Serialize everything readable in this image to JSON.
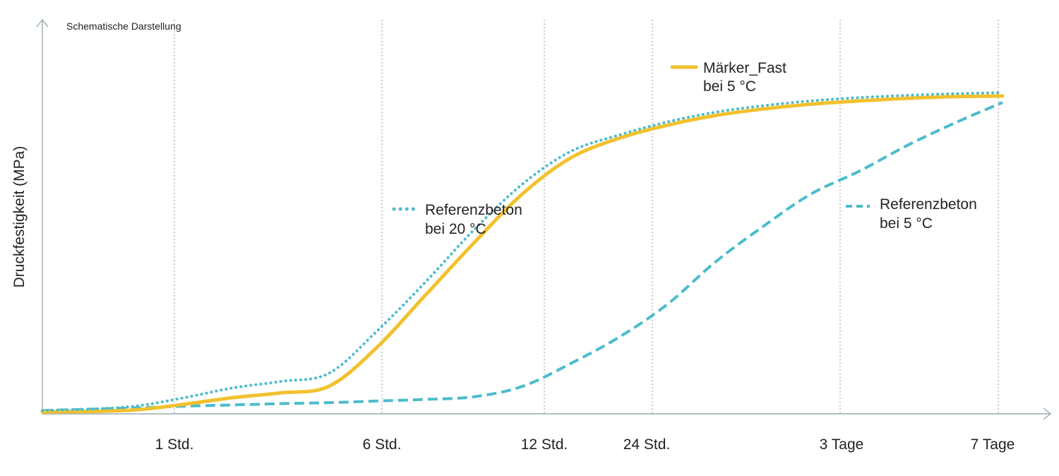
{
  "chart_data": {
    "type": "line",
    "note": "Schematische Darstellung",
    "xlabel": "",
    "ylabel": "Druckfestigkeit (MPa)",
    "x_ticks": [
      "1 Std.",
      "6 Std.",
      "12 Std.",
      "24 Std.",
      "3 Tage",
      "7 Tage"
    ],
    "grid": "vertical dotted",
    "y_ticks": "none (schematic)",
    "series": [
      {
        "name": "Märker_Fast bei 5 °C",
        "legend_lines": [
          "Märker_Fast",
          "bei 5 °C"
        ],
        "style": "solid",
        "color": "#f2c12e",
        "points": [
          [
            0,
            0.2
          ],
          [
            1,
            0.3
          ],
          [
            2,
            0.8
          ],
          [
            3,
            2.5
          ],
          [
            4,
            4.5
          ],
          [
            5,
            6
          ],
          [
            6,
            8
          ],
          [
            7,
            20
          ],
          [
            8,
            36
          ],
          [
            9,
            52
          ],
          [
            10,
            67
          ],
          [
            11,
            78
          ],
          [
            12,
            84
          ],
          [
            13,
            88
          ],
          [
            14,
            91
          ],
          [
            15,
            93
          ],
          [
            16,
            94.5
          ],
          [
            17,
            95.5
          ],
          [
            18,
            96.3
          ],
          [
            19,
            96.8
          ],
          [
            20,
            97
          ]
        ]
      },
      {
        "name": "Referenzbeton bei 20 °C",
        "legend_lines": [
          "Referenzbeton",
          "bei 20 °C"
        ],
        "style": "dotted",
        "color": "#4bbccc",
        "points": [
          [
            0,
            0.6
          ],
          [
            1,
            1
          ],
          [
            2,
            2
          ],
          [
            3,
            4.5
          ],
          [
            4,
            7.5
          ],
          [
            5,
            9.5
          ],
          [
            6,
            12
          ],
          [
            7,
            25
          ],
          [
            8,
            40
          ],
          [
            9,
            56
          ],
          [
            10,
            70
          ],
          [
            11,
            80
          ],
          [
            12,
            85
          ],
          [
            13,
            89
          ],
          [
            14,
            92
          ],
          [
            15,
            94
          ],
          [
            16,
            95.5
          ],
          [
            17,
            96.5
          ],
          [
            18,
            97.2
          ],
          [
            19,
            97.7
          ],
          [
            20,
            98
          ]
        ]
      },
      {
        "name": "Referenzbeton bei 5 °C",
        "legend_lines": [
          "Referenzbeton",
          "bei 5 °C"
        ],
        "style": "dashed",
        "color": "#4bbccc",
        "points": [
          [
            0,
            0.6
          ],
          [
            1,
            1
          ],
          [
            2,
            1.4
          ],
          [
            3,
            1.9
          ],
          [
            4,
            2.3
          ],
          [
            5,
            2.7
          ],
          [
            6,
            3
          ],
          [
            7,
            3.5
          ],
          [
            8,
            4
          ],
          [
            9,
            4.8
          ],
          [
            10,
            8
          ],
          [
            11,
            15
          ],
          [
            12,
            23
          ],
          [
            13,
            33
          ],
          [
            14,
            46
          ],
          [
            15,
            57
          ],
          [
            16,
            67
          ],
          [
            17,
            74
          ],
          [
            18,
            82
          ],
          [
            19,
            89
          ],
          [
            20,
            95
          ]
        ]
      }
    ]
  }
}
